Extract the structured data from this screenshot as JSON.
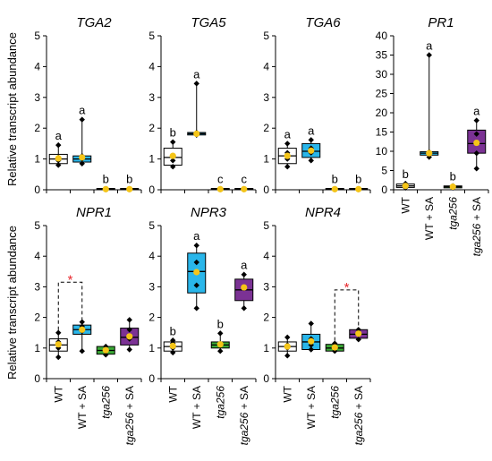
{
  "figure": {
    "ylabel": "Relative transcript abundance",
    "categories": [
      "WT",
      "WT + SA",
      "tga256",
      "tga256 + SA"
    ],
    "category_italic": [
      false,
      false,
      true,
      true
    ],
    "box_colors": [
      "#ffffff",
      "#29b6ea",
      "#3aa935",
      "#7b3294"
    ],
    "mean_color": "#f5c518",
    "point_color": "#000000",
    "sig_color": "#e8262c"
  },
  "chart_data": [
    {
      "type": "box",
      "title": "TGA2",
      "categories": [
        "WT",
        "WT + SA",
        "tga256",
        "tga256 + SA"
      ],
      "ylim": [
        0,
        5
      ],
      "yticks": [
        0,
        1,
        2,
        3,
        4,
        5
      ],
      "series": [
        {
          "category": "WT",
          "q1": 0.85,
          "median": 1.0,
          "q3": 1.15,
          "mean": 1.02,
          "points": [
            0.8,
            0.95,
            1.05,
            1.45
          ],
          "letter": "a"
        },
        {
          "category": "WT + SA",
          "q1": 0.9,
          "median": 1.0,
          "q3": 1.1,
          "mean": 1.05,
          "points": [
            0.85,
            1.0,
            1.1,
            2.28
          ],
          "letter": "a"
        },
        {
          "category": "tga256",
          "q1": 0.0,
          "median": 0.02,
          "q3": 0.04,
          "mean": 0.02,
          "points": [
            0.01,
            0.02,
            0.03
          ],
          "letter": "b"
        },
        {
          "category": "tga256 + SA",
          "q1": 0.0,
          "median": 0.02,
          "q3": 0.04,
          "mean": 0.02,
          "points": [
            0.01,
            0.02,
            0.03
          ],
          "letter": "b"
        }
      ]
    },
    {
      "type": "box",
      "title": "TGA5",
      "categories": [
        "WT",
        "WT + SA",
        "tga256",
        "tga256 + SA"
      ],
      "ylim": [
        0,
        5
      ],
      "yticks": [
        0,
        1,
        2,
        3,
        4,
        5
      ],
      "series": [
        {
          "category": "WT",
          "q1": 0.8,
          "median": 1.05,
          "q3": 1.35,
          "mean": 1.1,
          "points": [
            0.75,
            0.95,
            1.1,
            1.55
          ],
          "letter": "b"
        },
        {
          "category": "WT + SA",
          "q1": 1.78,
          "median": 1.82,
          "q3": 1.86,
          "mean": 1.82,
          "points": [
            1.78,
            1.82,
            1.86,
            3.45
          ],
          "letter": "a"
        },
        {
          "category": "tga256",
          "q1": 0.0,
          "median": 0.02,
          "q3": 0.04,
          "mean": 0.02,
          "points": [
            0.01,
            0.02,
            0.03
          ],
          "letter": "c"
        },
        {
          "category": "tga256 + SA",
          "q1": 0.0,
          "median": 0.02,
          "q3": 0.04,
          "mean": 0.02,
          "points": [
            0.01,
            0.02,
            0.03
          ],
          "letter": "c"
        }
      ]
    },
    {
      "type": "box",
      "title": "TGA6",
      "categories": [
        "WT",
        "WT + SA",
        "tga256",
        "tga256 + SA"
      ],
      "ylim": [
        0,
        5
      ],
      "yticks": [
        0,
        1,
        2,
        3,
        4,
        5
      ],
      "series": [
        {
          "category": "WT",
          "q1": 0.85,
          "median": 1.1,
          "q3": 1.35,
          "mean": 1.1,
          "points": [
            0.75,
            1.0,
            1.2,
            1.5
          ],
          "letter": "a"
        },
        {
          "category": "WT + SA",
          "q1": 1.05,
          "median": 1.25,
          "q3": 1.5,
          "mean": 1.27,
          "points": [
            0.95,
            1.2,
            1.35,
            1.62
          ],
          "letter": "a"
        },
        {
          "category": "tga256",
          "q1": 0.0,
          "median": 0.02,
          "q3": 0.04,
          "mean": 0.02,
          "points": [
            0.01,
            0.02,
            0.03
          ],
          "letter": "b"
        },
        {
          "category": "tga256 + SA",
          "q1": 0.0,
          "median": 0.02,
          "q3": 0.04,
          "mean": 0.02,
          "points": [
            0.01,
            0.02,
            0.03
          ],
          "letter": "b"
        }
      ]
    },
    {
      "type": "box",
      "title": "PR1",
      "categories": [
        "WT",
        "WT + SA",
        "tga256",
        "tga256 + SA"
      ],
      "ylim": [
        0,
        40
      ],
      "yticks": [
        0,
        5,
        10,
        15,
        20,
        25,
        30,
        35,
        40
      ],
      "series": [
        {
          "category": "WT",
          "q1": 0.6,
          "median": 1.0,
          "q3": 1.5,
          "mean": 1.0,
          "points": [
            0.5,
            0.9,
            1.2,
            1.6
          ],
          "letter": "b"
        },
        {
          "category": "WT + SA",
          "q1": 9.0,
          "median": 9.5,
          "q3": 9.9,
          "mean": 9.5,
          "points": [
            8.5,
            9.2,
            9.8,
            35.0
          ],
          "letter": "a"
        },
        {
          "category": "tga256",
          "q1": 0.5,
          "median": 0.8,
          "q3": 1.0,
          "mean": 0.8,
          "points": [
            0.5,
            0.8,
            1.0
          ],
          "letter": "b"
        },
        {
          "category": "tga256 + SA",
          "q1": 9.5,
          "median": 12.0,
          "q3": 15.5,
          "mean": 12.2,
          "points": [
            5.5,
            9.5,
            14.5,
            18.0
          ],
          "letter": "a"
        }
      ]
    },
    {
      "type": "box",
      "title": "NPR1",
      "categories": [
        "WT",
        "WT + SA",
        "tga256",
        "tga256 + SA"
      ],
      "ylim": [
        0,
        5
      ],
      "yticks": [
        0,
        1,
        2,
        3,
        4,
        5
      ],
      "series": [
        {
          "category": "WT",
          "q1": 0.9,
          "median": 1.1,
          "q3": 1.3,
          "mean": 1.12,
          "points": [
            0.7,
            1.0,
            1.2,
            1.5
          ],
          "letter": ""
        },
        {
          "category": "WT + SA",
          "q1": 1.45,
          "median": 1.6,
          "q3": 1.75,
          "mean": 1.6,
          "points": [
            0.9,
            1.55,
            1.7,
            1.85
          ],
          "letter": ""
        },
        {
          "category": "tga256",
          "q1": 0.8,
          "median": 0.92,
          "q3": 1.05,
          "mean": 0.93,
          "points": [
            0.78,
            0.9,
            1.05
          ],
          "letter": ""
        },
        {
          "category": "tga256 + SA",
          "q1": 1.1,
          "median": 1.35,
          "q3": 1.65,
          "mean": 1.38,
          "points": [
            0.95,
            1.3,
            1.6,
            1.92
          ],
          "letter": ""
        }
      ],
      "significance": [
        {
          "from": 0,
          "to": 1,
          "y": 3.15,
          "label": "*"
        }
      ]
    },
    {
      "type": "box",
      "title": "NPR3",
      "categories": [
        "WT",
        "WT + SA",
        "tga256",
        "tga256 + SA"
      ],
      "ylim": [
        0,
        5
      ],
      "yticks": [
        0,
        1,
        2,
        3,
        4,
        5
      ],
      "series": [
        {
          "category": "WT",
          "q1": 0.9,
          "median": 1.05,
          "q3": 1.2,
          "mean": 1.07,
          "points": [
            0.85,
            1.0,
            1.15,
            1.25
          ],
          "letter": "b"
        },
        {
          "category": "WT + SA",
          "q1": 2.8,
          "median": 3.5,
          "q3": 4.1,
          "mean": 3.48,
          "points": [
            2.3,
            3.05,
            3.8,
            4.35
          ],
          "letter": "a"
        },
        {
          "category": "tga256",
          "q1": 1.0,
          "median": 1.1,
          "q3": 1.2,
          "mean": 1.12,
          "points": [
            0.9,
            1.1,
            1.48
          ],
          "letter": "b"
        },
        {
          "category": "tga256 + SA",
          "q1": 2.55,
          "median": 2.9,
          "q3": 3.25,
          "mean": 2.98,
          "points": [
            2.3,
            2.95,
            3.4
          ],
          "letter": "a"
        }
      ]
    },
    {
      "type": "box",
      "title": "NPR4",
      "categories": [
        "WT",
        "WT + SA",
        "tga256",
        "tga256 + SA"
      ],
      "ylim": [
        0,
        5
      ],
      "yticks": [
        0,
        1,
        2,
        3,
        4,
        5
      ],
      "series": [
        {
          "category": "WT",
          "q1": 0.9,
          "median": 1.05,
          "q3": 1.2,
          "mean": 1.05,
          "points": [
            0.75,
            1.0,
            1.1,
            1.35
          ],
          "letter": ""
        },
        {
          "category": "WT + SA",
          "q1": 0.95,
          "median": 1.2,
          "q3": 1.45,
          "mean": 1.22,
          "points": [
            0.95,
            1.1,
            1.3,
            1.8
          ],
          "letter": ""
        },
        {
          "category": "tga256",
          "q1": 0.9,
          "median": 1.0,
          "q3": 1.12,
          "mean": 1.02,
          "points": [
            0.9,
            1.0,
            1.15
          ],
          "letter": ""
        },
        {
          "category": "tga256 + SA",
          "q1": 1.32,
          "median": 1.45,
          "q3": 1.6,
          "mean": 1.47,
          "points": [
            1.28,
            1.45,
            1.6
          ],
          "letter": ""
        }
      ],
      "significance": [
        {
          "from": 2,
          "to": 3,
          "y": 2.9,
          "label": "*"
        }
      ]
    }
  ]
}
